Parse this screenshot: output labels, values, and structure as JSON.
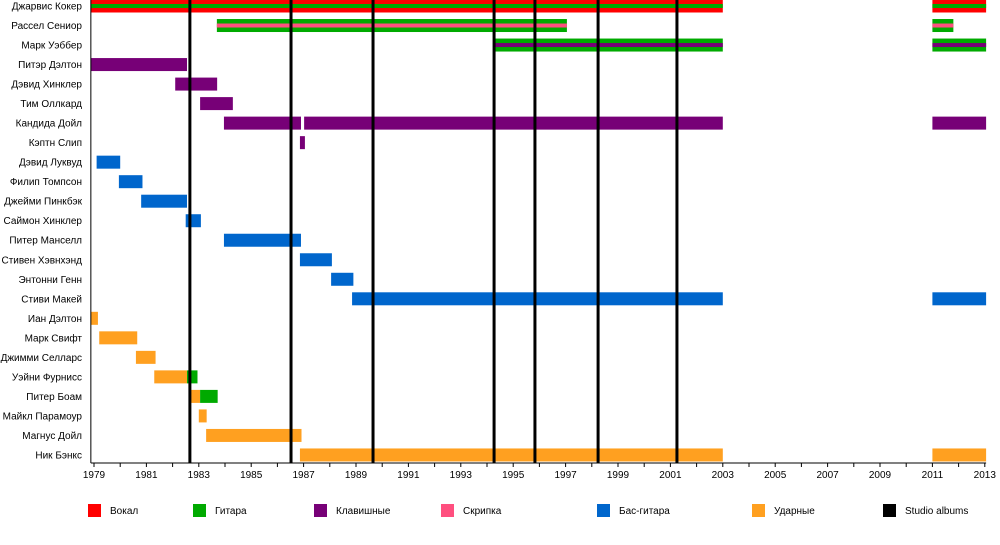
{
  "chart_data": {
    "type": "timeline",
    "xlim": [
      1978.88,
      2013.05
    ],
    "x_tick_labels": [
      "1979",
      "1981",
      "1983",
      "1985",
      "1987",
      "1989",
      "1991",
      "1993",
      "1995",
      "1997",
      "1999",
      "2001",
      "2003",
      "2005",
      "2007",
      "2009",
      "2011",
      "2013"
    ],
    "roles": {
      "vocal": {
        "label": "Вокал",
        "color": "#ff0000"
      },
      "guitar": {
        "label": "Гитара",
        "color": "#00aa00"
      },
      "keys": {
        "label": "Клавишные",
        "color": "#770077"
      },
      "violin": {
        "label": "Скрипка",
        "color": "#ff4f7f"
      },
      "bass": {
        "label": "Бас-гитара",
        "color": "#0066cc"
      },
      "drums": {
        "label": "Ударные",
        "color": "#ffa020"
      },
      "album": {
        "label": "Studio albums",
        "color": "#000000"
      }
    },
    "legend_order": [
      "vocal",
      "guitar",
      "keys",
      "violin",
      "bass",
      "drums",
      "album"
    ],
    "legend_position": "bottom",
    "studio_albums": [
      1982.66,
      1986.52,
      1989.65,
      1994.27,
      1995.83,
      1998.24,
      2001.25
    ],
    "members": [
      {
        "name": "Джарвис Кокер",
        "periods": [
          {
            "from": 1978.88,
            "to": 2003,
            "role": "vocal",
            "stripe": "guitar"
          },
          {
            "from": 2011,
            "to": 2013.05,
            "role": "vocal",
            "stripe": "guitar"
          }
        ]
      },
      {
        "name": "Рассел Сениор",
        "periods": [
          {
            "from": 1983.69,
            "to": 1997.05,
            "role": "guitar",
            "stripe": "violin"
          },
          {
            "from": 2011,
            "to": 2011.8,
            "role": "guitar",
            "stripe": "violin"
          }
        ]
      },
      {
        "name": "Марк Уэббер",
        "periods": [
          {
            "from": 1994.3,
            "to": 2003,
            "role": "guitar",
            "stripe": "keys"
          },
          {
            "from": 2011,
            "to": 2013.05,
            "role": "guitar",
            "stripe": "keys"
          }
        ]
      },
      {
        "name": "Питэр Дэлтон",
        "periods": [
          {
            "from": 1978.88,
            "to": 1982.55,
            "role": "keys"
          }
        ]
      },
      {
        "name": "Дэвид Хинклер",
        "periods": [
          {
            "from": 1982.1,
            "to": 1983.7,
            "role": "keys"
          }
        ]
      },
      {
        "name": "Тим Оллкард",
        "periods": [
          {
            "from": 1983.05,
            "to": 1984.3,
            "role": "keys"
          }
        ]
      },
      {
        "name": "Кандида Дойл",
        "periods": [
          {
            "from": 1983.96,
            "to": 1986.9,
            "role": "keys"
          },
          {
            "from": 1987.02,
            "to": 2003,
            "role": "keys"
          },
          {
            "from": 2011,
            "to": 2013.05,
            "role": "keys"
          }
        ]
      },
      {
        "name": "Кэптн Слип",
        "periods": [
          {
            "from": 1986.86,
            "to": 1987.05,
            "role": "keys"
          }
        ]
      },
      {
        "name": "Дэвид Луквуд",
        "periods": [
          {
            "from": 1979.1,
            "to": 1980.0,
            "role": "bass"
          }
        ]
      },
      {
        "name": "Филип Томпсон",
        "periods": [
          {
            "from": 1979.95,
            "to": 1980.85,
            "role": "bass"
          }
        ]
      },
      {
        "name": "Джейми Пинкбэк",
        "periods": [
          {
            "from": 1980.8,
            "to": 1982.55,
            "role": "bass"
          }
        ]
      },
      {
        "name": "Саймон Хинклер",
        "periods": [
          {
            "from": 1982.5,
            "to": 1983.08,
            "role": "bass"
          }
        ]
      },
      {
        "name": "Питер Манселл",
        "periods": [
          {
            "from": 1983.96,
            "to": 1986.9,
            "role": "bass"
          }
        ]
      },
      {
        "name": "Стивен Хэвнхэнд",
        "periods": [
          {
            "from": 1986.86,
            "to": 1988.08,
            "role": "bass"
          }
        ]
      },
      {
        "name": "Энтонни Генн",
        "periods": [
          {
            "from": 1988.05,
            "to": 1988.9,
            "role": "bass"
          }
        ]
      },
      {
        "name": "Стиви Макей",
        "periods": [
          {
            "from": 1988.85,
            "to": 2003,
            "role": "bass"
          },
          {
            "from": 2011,
            "to": 2013.05,
            "role": "bass"
          }
        ]
      },
      {
        "name": "Иан Дэлтон",
        "periods": [
          {
            "from": 1978.88,
            "to": 1979.15,
            "role": "drums"
          }
        ]
      },
      {
        "name": "Марк Свифт",
        "periods": [
          {
            "from": 1979.2,
            "to": 1980.65,
            "role": "drums"
          }
        ]
      },
      {
        "name": "Джимми Селларс",
        "periods": [
          {
            "from": 1980.6,
            "to": 1981.35,
            "role": "drums"
          }
        ]
      },
      {
        "name": "Уэйни Фурнисс",
        "periods": [
          {
            "from": 1981.3,
            "to": 1982.55,
            "role": "drums"
          },
          {
            "from": 1982.55,
            "to": 1982.95,
            "role": "guitar"
          }
        ]
      },
      {
        "name": "Питер Боам",
        "periods": [
          {
            "from": 1982.67,
            "to": 1983.05,
            "role": "drums"
          },
          {
            "from": 1983.05,
            "to": 1983.72,
            "role": "guitar"
          }
        ]
      },
      {
        "name": "Майкл Парамоур",
        "periods": [
          {
            "from": 1983.0,
            "to": 1983.3,
            "role": "drums"
          }
        ]
      },
      {
        "name": "Магнус Дойл",
        "periods": [
          {
            "from": 1983.28,
            "to": 1986.92,
            "role": "drums"
          }
        ]
      },
      {
        "name": "Ник Бэнкс",
        "periods": [
          {
            "from": 1986.86,
            "to": 2003,
            "role": "drums"
          },
          {
            "from": 2011,
            "to": 2013.05,
            "role": "drums"
          }
        ]
      }
    ]
  }
}
